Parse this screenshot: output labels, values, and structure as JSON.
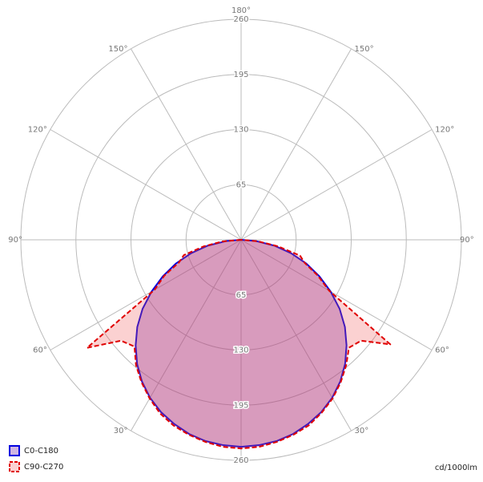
{
  "chart_data": {
    "type": "polar",
    "x": [
      -90,
      -85,
      -80,
      -75,
      -70,
      -65,
      -60,
      -55,
      -50,
      -45,
      -40,
      -35,
      -30,
      -25,
      -20,
      -15,
      -10,
      -5,
      0,
      5,
      10,
      15,
      20,
      25,
      30,
      35,
      40,
      45,
      50,
      55,
      60,
      65,
      70,
      75,
      80,
      85,
      90
    ],
    "series": [
      {
        "name": "C0-C180",
        "color": "#0000e0",
        "fill": "rgba(110,30,170,0.33)",
        "dashed": false,
        "values": [
          0,
          18,
          40,
          61,
          82,
          102,
          122,
          142,
          160,
          176,
          191,
          204,
          215,
          224,
          231,
          237,
          241,
          243,
          244,
          243,
          241,
          237,
          231,
          224,
          215,
          204,
          191,
          176,
          160,
          142,
          122,
          102,
          82,
          61,
          40,
          18,
          0
        ]
      },
      {
        "name": "C90-C270",
        "color": "#e00000",
        "fill": "rgba(240,90,90,0.28)",
        "dashed": true,
        "values": [
          0,
          22,
          45,
          70,
          78,
          100,
          118,
          222,
          185,
          178,
          193,
          205,
          216,
          226,
          233,
          238,
          242,
          245,
          246,
          245,
          242,
          238,
          233,
          225,
          216,
          205,
          193,
          180,
          185,
          215,
          120,
          100,
          80,
          72,
          44,
          20,
          0
        ]
      }
    ],
    "rlim": [
      0,
      260
    ],
    "rticks": [
      65,
      130,
      195,
      260
    ],
    "xticks": [
      {
        "value": -150,
        "label": "150°"
      },
      {
        "value": -120,
        "label": "120°"
      },
      {
        "value": -90,
        "label": "90°"
      },
      {
        "value": -60,
        "label": "60°"
      },
      {
        "value": -30,
        "label": "30°"
      },
      {
        "value": 30,
        "label": "30°"
      },
      {
        "value": 60,
        "label": "60°"
      },
      {
        "value": 90,
        "label": "90°"
      },
      {
        "value": 120,
        "label": "120°"
      },
      {
        "value": 150,
        "label": "150°"
      },
      {
        "value": 180,
        "label": "180°"
      }
    ],
    "unit": "cd/1000lm"
  }
}
